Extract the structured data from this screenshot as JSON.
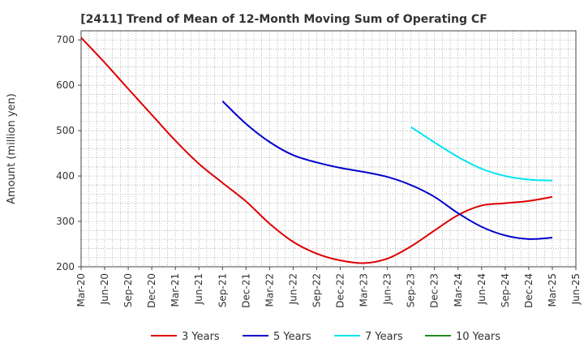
{
  "chart_data": {
    "type": "line",
    "title": "[2411]  Trend of Mean of 12-Month Moving Sum of Operating CF",
    "xlabel": "",
    "ylabel": "Amount (million yen)",
    "ylim": [
      200,
      720
    ],
    "y_ticks": [
      200,
      300,
      400,
      500,
      600,
      700
    ],
    "grid": true,
    "legend_position": "bottom",
    "x_ticks": [
      "Mar-20",
      "Jun-20",
      "Sep-20",
      "Dec-20",
      "Mar-21",
      "Jun-21",
      "Sep-21",
      "Dec-21",
      "Mar-22",
      "Jun-22",
      "Sep-22",
      "Dec-22",
      "Mar-23",
      "Jun-23",
      "Sep-23",
      "Dec-23",
      "Mar-24",
      "Jun-24",
      "Sep-24",
      "Dec-24",
      "Mar-25",
      "Jun-25"
    ],
    "series": [
      {
        "name": "3 Years",
        "color": "#dd0000",
        "points": [
          [
            "Mar-20",
            705
          ],
          [
            "Jun-20",
            650
          ],
          [
            "Sep-20",
            592
          ],
          [
            "Dec-20",
            535
          ],
          [
            "Mar-21",
            478
          ],
          [
            "Jun-21",
            427
          ],
          [
            "Sep-21",
            385
          ],
          [
            "Dec-21",
            344
          ],
          [
            "Mar-22",
            295
          ],
          [
            "Jun-22",
            255
          ],
          [
            "Sep-22",
            229
          ],
          [
            "Dec-22",
            214
          ],
          [
            "Mar-23",
            208
          ],
          [
            "Jun-23",
            218
          ],
          [
            "Sep-23",
            245
          ],
          [
            "Dec-23",
            280
          ],
          [
            "Mar-24",
            314
          ],
          [
            "Jun-24",
            335
          ],
          [
            "Sep-24",
            340
          ],
          [
            "Dec-24",
            345
          ],
          [
            "Mar-25",
            354
          ]
        ]
      },
      {
        "name": "5 Years",
        "color": "#0000cc",
        "points": [
          [
            "Sep-21",
            565
          ],
          [
            "Dec-21",
            515
          ],
          [
            "Mar-22",
            475
          ],
          [
            "Jun-22",
            446
          ],
          [
            "Sep-22",
            430
          ],
          [
            "Dec-22",
            418
          ],
          [
            "Mar-23",
            409
          ],
          [
            "Jun-23",
            398
          ],
          [
            "Sep-23",
            380
          ],
          [
            "Dec-23",
            354
          ],
          [
            "Mar-24",
            318
          ],
          [
            "Jun-24",
            288
          ],
          [
            "Sep-24",
            269
          ],
          [
            "Dec-24",
            261
          ],
          [
            "Mar-25",
            264
          ]
        ]
      },
      {
        "name": "7 Years",
        "color": "#00e5ee",
        "points": [
          [
            "Sep-23",
            508
          ],
          [
            "Dec-23",
            474
          ],
          [
            "Mar-24",
            442
          ],
          [
            "Jun-24",
            416
          ],
          [
            "Sep-24",
            400
          ],
          [
            "Dec-24",
            392
          ],
          [
            "Mar-25",
            390
          ]
        ]
      },
      {
        "name": "10 Years",
        "color": "#228b22",
        "points": []
      }
    ]
  }
}
